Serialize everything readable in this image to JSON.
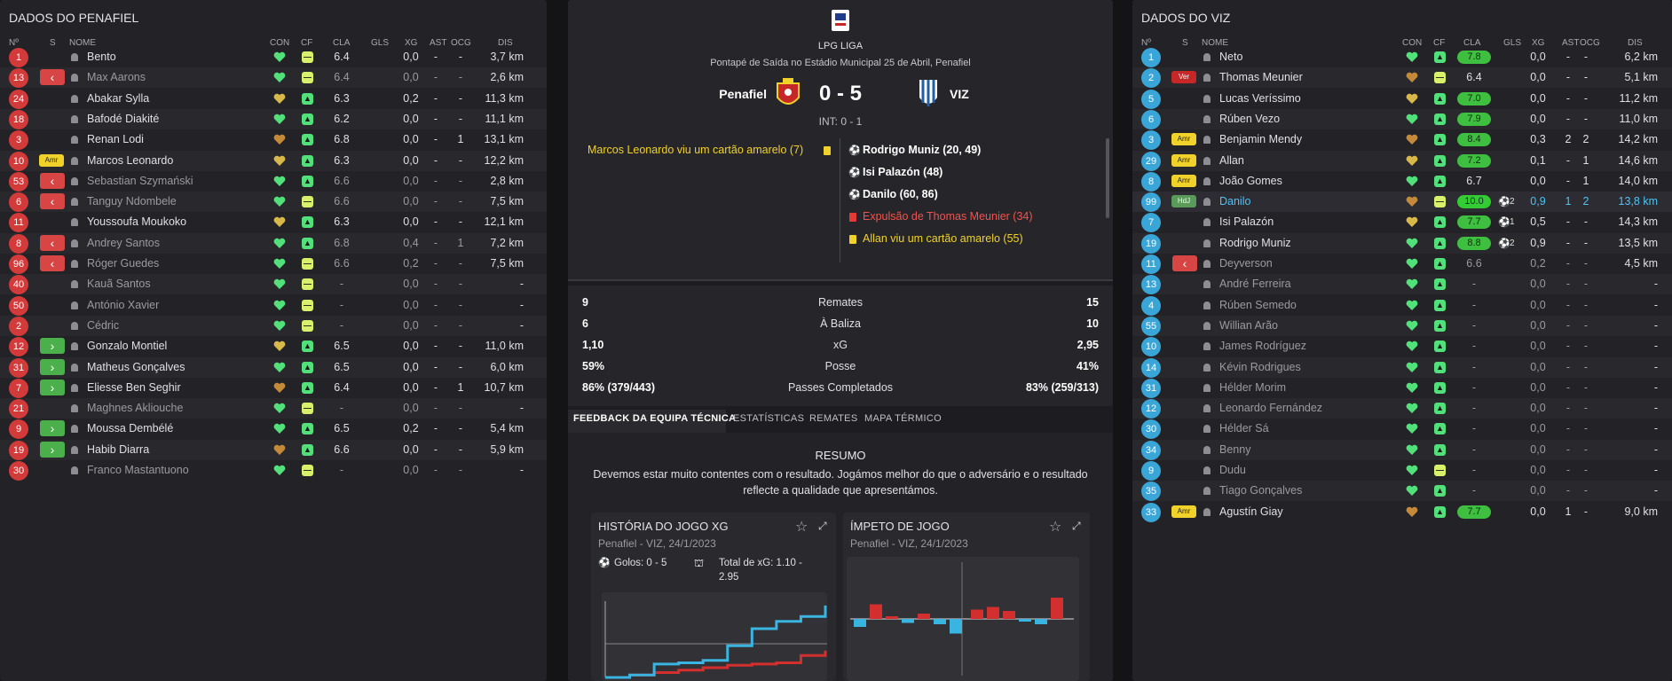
{
  "left": {
    "title": "DADOS DO PENAFIEL",
    "headers": {
      "no": "Nº",
      "s": "S",
      "nome": "NOME",
      "con": "CON",
      "cf": "CF",
      "cla": "CLA",
      "gls": "GLS",
      "xg": "XG",
      "ast": "AST",
      "ocg": "OCG",
      "dis": "DIS"
    },
    "players": [
      {
        "no": "1",
        "s": "",
        "name": "Bento",
        "cf": "y",
        "cla": "6.4",
        "xg": "0,0",
        "ast": "-",
        "ocg": "-",
        "dis": "3,7 km",
        "sub": false
      },
      {
        "no": "13",
        "s": "out",
        "name": "Max Aarons",
        "cf": "y",
        "cla": "6.4",
        "xg": "0,0",
        "ast": "-",
        "ocg": "-",
        "dis": "2,6 km",
        "sub": true
      },
      {
        "no": "24",
        "s": "",
        "name": "Abakar Sylla",
        "cf": "g",
        "cla": "6.3",
        "xg": "0,2",
        "ast": "-",
        "ocg": "-",
        "dis": "11,3 km",
        "sub": false
      },
      {
        "no": "18",
        "s": "",
        "name": "Bafodé Diakité",
        "cf": "g",
        "cla": "6.2",
        "xg": "0,0",
        "ast": "-",
        "ocg": "-",
        "dis": "11,1 km",
        "sub": false
      },
      {
        "no": "3",
        "s": "",
        "name": "Renan Lodi",
        "cf": "g",
        "cla": "6.8",
        "xg": "0,0",
        "ast": "-",
        "ocg": "1",
        "dis": "13,1 km",
        "sub": false
      },
      {
        "no": "10",
        "s": "amr",
        "name": "Marcos Leonardo",
        "cf": "g",
        "cla": "6.3",
        "xg": "0,0",
        "ast": "-",
        "ocg": "-",
        "dis": "12,2 km",
        "sub": false
      },
      {
        "no": "53",
        "s": "out",
        "name": "Sebastian Szymański",
        "cf": "g",
        "cla": "6.6",
        "xg": "0,0",
        "ast": "-",
        "ocg": "-",
        "dis": "2,8 km",
        "sub": true
      },
      {
        "no": "6",
        "s": "out",
        "name": "Tanguy Ndombele",
        "cf": "y",
        "cla": "6.6",
        "xg": "0,0",
        "ast": "-",
        "ocg": "-",
        "dis": "7,5 km",
        "sub": true
      },
      {
        "no": "11",
        "s": "",
        "name": "Youssoufa Moukoko",
        "cf": "g",
        "cla": "6.3",
        "xg": "0,0",
        "ast": "-",
        "ocg": "-",
        "dis": "12,1 km",
        "sub": false
      },
      {
        "no": "8",
        "s": "out",
        "name": "Andrey Santos",
        "cf": "g",
        "cla": "6.8",
        "xg": "0,4",
        "ast": "-",
        "ocg": "1",
        "dis": "7,2 km",
        "sub": true
      },
      {
        "no": "96",
        "s": "out",
        "name": "Róger Guedes",
        "cf": "y",
        "cla": "6.6",
        "xg": "0,2",
        "ast": "-",
        "ocg": "-",
        "dis": "7,5 km",
        "sub": true
      },
      {
        "no": "40",
        "s": "",
        "name": "Kauã Santos",
        "cf": "y",
        "cla": "-",
        "xg": "0,0",
        "ast": "-",
        "ocg": "-",
        "dis": "-",
        "sub": true
      },
      {
        "no": "50",
        "s": "",
        "name": "António Xavier",
        "cf": "y",
        "cla": "-",
        "xg": "0,0",
        "ast": "-",
        "ocg": "-",
        "dis": "-",
        "sub": true
      },
      {
        "no": "2",
        "s": "",
        "name": "Cédric",
        "cf": "y",
        "cla": "-",
        "xg": "0,0",
        "ast": "-",
        "ocg": "-",
        "dis": "-",
        "sub": true
      },
      {
        "no": "12",
        "s": "in",
        "name": "Gonzalo Montiel",
        "cf": "g",
        "cla": "6.5",
        "xg": "0,0",
        "ast": "-",
        "ocg": "-",
        "dis": "11,0 km",
        "sub": false
      },
      {
        "no": "31",
        "s": "in",
        "name": "Matheus Gonçalves",
        "cf": "g",
        "cla": "6.5",
        "xg": "0,0",
        "ast": "-",
        "ocg": "-",
        "dis": "6,0 km",
        "sub": false
      },
      {
        "no": "7",
        "s": "in",
        "name": "Eliesse Ben Seghir",
        "cf": "g",
        "cla": "6.4",
        "xg": "0,0",
        "ast": "-",
        "ocg": "1",
        "dis": "10,7 km",
        "sub": false
      },
      {
        "no": "21",
        "s": "",
        "name": "Maghnes Akliouche",
        "cf": "y",
        "cla": "-",
        "xg": "0,0",
        "ast": "-",
        "ocg": "-",
        "dis": "-",
        "sub": true
      },
      {
        "no": "9",
        "s": "in",
        "name": "Moussa Dembélé",
        "cf": "g",
        "cla": "6.5",
        "xg": "0,2",
        "ast": "-",
        "ocg": "-",
        "dis": "5,4 km",
        "sub": false
      },
      {
        "no": "19",
        "s": "in",
        "name": "Habib Diarra",
        "cf": "g",
        "cla": "6.6",
        "xg": "0,0",
        "ast": "-",
        "ocg": "-",
        "dis": "5,9 km",
        "sub": false
      },
      {
        "no": "30",
        "s": "",
        "name": "Franco Mastantuono",
        "cf": "y",
        "cla": "-",
        "xg": "0,0",
        "ast": "-",
        "ocg": "-",
        "dis": "-",
        "sub": true
      }
    ]
  },
  "right": {
    "title": "DADOS DO VIZ",
    "headers": {
      "no": "Nº",
      "s": "S",
      "nome": "NOME",
      "con": "CON",
      "cf": "CF",
      "cla": "CLA",
      "gls": "GLS",
      "xg": "XG",
      "ast": "AST",
      "ocg": "OCG",
      "dis": "DIS"
    },
    "players": [
      {
        "no": "1",
        "s": "",
        "name": "Neto",
        "cf": "g",
        "cla": "7.8",
        "rt": "good",
        "gls": "",
        "xg": "0,0",
        "ast": "-",
        "ocg": "-",
        "dis": "6,2 km",
        "sub": false,
        "hl": false
      },
      {
        "no": "2",
        "s": "ver",
        "name": "Thomas Meunier",
        "cf": "y",
        "cla": "6.4",
        "rt": "",
        "gls": "",
        "xg": "0,0",
        "ast": "-",
        "ocg": "-",
        "dis": "5,1 km",
        "sub": false,
        "hl": false
      },
      {
        "no": "5",
        "s": "",
        "name": "Lucas Veríssimo",
        "cf": "g",
        "cla": "7.0",
        "rt": "good",
        "gls": "",
        "xg": "0,0",
        "ast": "-",
        "ocg": "-",
        "dis": "11,2 km",
        "sub": false,
        "hl": false
      },
      {
        "no": "6",
        "s": "",
        "name": "Rúben Vezo",
        "cf": "g",
        "cla": "7.9",
        "rt": "good",
        "gls": "",
        "xg": "0,0",
        "ast": "-",
        "ocg": "-",
        "dis": "11,0 km",
        "sub": false,
        "hl": false
      },
      {
        "no": "3",
        "s": "amr",
        "name": "Benjamin Mendy",
        "cf": "g",
        "cla": "8.4",
        "rt": "good",
        "gls": "",
        "xg": "0,3",
        "ast": "2",
        "ocg": "2",
        "dis": "14,2 km",
        "sub": false,
        "hl": false
      },
      {
        "no": "29",
        "s": "amr",
        "name": "Allan",
        "cf": "g",
        "cla": "7.2",
        "rt": "good",
        "gls": "",
        "xg": "0,1",
        "ast": "-",
        "ocg": "1",
        "dis": "14,6 km",
        "sub": false,
        "hl": false
      },
      {
        "no": "8",
        "s": "amr",
        "name": "João Gomes",
        "cf": "g",
        "cla": "6.7",
        "rt": "",
        "gls": "",
        "xg": "0,0",
        "ast": "-",
        "ocg": "1",
        "dis": "14,0 km",
        "sub": false,
        "hl": false
      },
      {
        "no": "99",
        "s": "hdj",
        "name": "Danilo",
        "cf": "y",
        "cla": "10.0",
        "rt": "great",
        "gls": "2",
        "xg": "0,9",
        "ast": "1",
        "ocg": "2",
        "dis": "13,8 km",
        "sub": false,
        "hl": true
      },
      {
        "no": "7",
        "s": "",
        "name": "Isi Palazón",
        "cf": "g",
        "cla": "7.7",
        "rt": "good",
        "gls": "1",
        "xg": "0,5",
        "ast": "-",
        "ocg": "-",
        "dis": "14,3 km",
        "sub": false,
        "hl": false
      },
      {
        "no": "19",
        "s": "",
        "name": "Rodrigo Muniz",
        "cf": "g",
        "cla": "8.8",
        "rt": "good",
        "gls": "2",
        "xg": "0,9",
        "ast": "-",
        "ocg": "-",
        "dis": "13,5 km",
        "sub": false,
        "hl": false
      },
      {
        "no": "11",
        "s": "out",
        "name": "Deyverson",
        "cf": "g",
        "cla": "6.6",
        "rt": "",
        "gls": "",
        "xg": "0,2",
        "ast": "-",
        "ocg": "-",
        "dis": "4,5 km",
        "sub": true,
        "hl": false
      },
      {
        "no": "13",
        "s": "",
        "name": "André Ferreira",
        "cf": "g",
        "cla": "-",
        "rt": "",
        "gls": "",
        "xg": "0,0",
        "ast": "-",
        "ocg": "-",
        "dis": "-",
        "sub": true,
        "hl": false
      },
      {
        "no": "4",
        "s": "",
        "name": "Rúben Semedo",
        "cf": "g",
        "cla": "-",
        "rt": "",
        "gls": "",
        "xg": "0,0",
        "ast": "-",
        "ocg": "-",
        "dis": "-",
        "sub": true,
        "hl": false
      },
      {
        "no": "55",
        "s": "",
        "name": "Willian Arão",
        "cf": "g",
        "cla": "-",
        "rt": "",
        "gls": "",
        "xg": "0,0",
        "ast": "-",
        "ocg": "-",
        "dis": "-",
        "sub": true,
        "hl": false
      },
      {
        "no": "10",
        "s": "",
        "name": "James Rodríguez",
        "cf": "g",
        "cla": "-",
        "rt": "",
        "gls": "",
        "xg": "0,0",
        "ast": "-",
        "ocg": "-",
        "dis": "-",
        "sub": true,
        "hl": false
      },
      {
        "no": "14",
        "s": "",
        "name": "Kévin Rodrigues",
        "cf": "g",
        "cla": "-",
        "rt": "",
        "gls": "",
        "xg": "0,0",
        "ast": "-",
        "ocg": "-",
        "dis": "-",
        "sub": true,
        "hl": false
      },
      {
        "no": "31",
        "s": "",
        "name": "Hélder Morim",
        "cf": "g",
        "cla": "-",
        "rt": "",
        "gls": "",
        "xg": "0,0",
        "ast": "-",
        "ocg": "-",
        "dis": "-",
        "sub": true,
        "hl": false
      },
      {
        "no": "12",
        "s": "",
        "name": "Leonardo Fernández",
        "cf": "g",
        "cla": "-",
        "rt": "",
        "gls": "",
        "xg": "0,0",
        "ast": "-",
        "ocg": "-",
        "dis": "-",
        "sub": true,
        "hl": false
      },
      {
        "no": "30",
        "s": "",
        "name": "Hélder Sá",
        "cf": "g",
        "cla": "-",
        "rt": "",
        "gls": "",
        "xg": "0,0",
        "ast": "-",
        "ocg": "-",
        "dis": "-",
        "sub": true,
        "hl": false
      },
      {
        "no": "34",
        "s": "",
        "name": "Benny",
        "cf": "g",
        "cla": "-",
        "rt": "",
        "gls": "",
        "xg": "0,0",
        "ast": "-",
        "ocg": "-",
        "dis": "-",
        "sub": true,
        "hl": false
      },
      {
        "no": "9",
        "s": "",
        "name": "Dudu",
        "cf": "y",
        "cla": "-",
        "rt": "",
        "gls": "",
        "xg": "0,0",
        "ast": "-",
        "ocg": "-",
        "dis": "-",
        "sub": true,
        "hl": false
      },
      {
        "no": "35",
        "s": "",
        "name": "Tiago Gonçalves",
        "cf": "g",
        "cla": "-",
        "rt": "",
        "gls": "",
        "xg": "0,0",
        "ast": "-",
        "ocg": "-",
        "dis": "-",
        "sub": true,
        "hl": false
      },
      {
        "no": "33",
        "s": "amr",
        "name": "Agustín Giay",
        "cf": "g",
        "cla": "7.7",
        "rt": "good",
        "gls": "",
        "xg": "0,0",
        "ast": "1",
        "ocg": "-",
        "dis": "9,0 km",
        "sub": false,
        "hl": false
      }
    ]
  },
  "badges": {
    "amr": "Amr",
    "ver": "Ver",
    "hdj": "HdJ"
  },
  "match": {
    "league": "LPG LIGA",
    "kickoff": "Pontapé de Saída no Estádio Municipal 25 de Abril, Penafiel",
    "home": "Penafiel",
    "away": "VIZ",
    "score": "0 - 5",
    "halftime": "INT: 0 - 1",
    "events_home": [
      "Marcos Leonardo viu um cartão amarelo (7)"
    ],
    "events_away": [
      {
        "type": "goal",
        "text": "Rodrigo Muniz (20, 49)"
      },
      {
        "type": "goal",
        "text": "Isi Palazón (48)"
      },
      {
        "type": "goal",
        "text": "Danilo (60, 86)"
      },
      {
        "type": "red",
        "text": "Expulsão de Thomas Meunier (34)"
      },
      {
        "type": "yellow",
        "text": "Allan viu um cartão amarelo (55)"
      }
    ]
  },
  "stats": [
    {
      "home": "9",
      "label": "Remates",
      "away": "15"
    },
    {
      "home": "6",
      "label": "À Baliza",
      "away": "10"
    },
    {
      "home": "1,10",
      "label": "xG",
      "away": "2,95"
    },
    {
      "home": "59%",
      "label": "Posse",
      "away": "41%"
    },
    {
      "home": "86% (379/443)",
      "label": "Passes Completados",
      "away": "83% (259/313)"
    }
  ],
  "tabs": [
    "FEEDBACK DA EQUIPA TÉCNICA",
    "ESTATÍSTICAS",
    "REMATES",
    "MAPA TÉRMICO"
  ],
  "feedback": {
    "title": "RESUMO",
    "line1": "Devemos estar muito contentes com o resultado. Jogámos melhor do que o adversário e o resultado",
    "line2": "reflecte a qualidade que apresentámos."
  },
  "cards": {
    "xg": {
      "title": "HISTÓRIA DO JOGO XG",
      "sub": "Penafiel - VIZ, 24/1/2023",
      "goals": "Golos: 0 - 5",
      "xg1": "Total de xG: 1.10 -",
      "xg2": "2.95"
    },
    "momentum": {
      "title": "ÍMPETO DE JOGO",
      "sub": "Penafiel - VIZ, 24/1/2023"
    }
  },
  "colors": {
    "home_red": "#d32f2f",
    "away_blue": "#3ab4e0",
    "yellow_card": "#f0d22a",
    "red_card": "#e53935"
  },
  "chart_data": [
    {
      "type": "line",
      "title": "HISTÓRIA DO JOGO XG",
      "series": [
        {
          "x": [
            0,
            10,
            20,
            30,
            40,
            50,
            60,
            70,
            80,
            90
          ],
          "values": [
            0,
            0.1,
            0.2,
            0.3,
            0.4,
            0.5,
            0.55,
            0.6,
            0.9,
            1.1
          ]
        },
        {
          "x": [
            0,
            10,
            20,
            30,
            40,
            50,
            60,
            70,
            80,
            90
          ],
          "values": [
            0,
            0.1,
            0.55,
            0.6,
            0.7,
            1.3,
            2.0,
            2.3,
            2.5,
            2.95
          ]
        }
      ]
    },
    {
      "type": "bar",
      "title": "ÍMPETO DE JOGO",
      "categories": [
        "1",
        "2",
        "3",
        "4",
        "5",
        "6",
        "7",
        "8",
        "9",
        "10",
        "11",
        "12",
        "13"
      ],
      "series": [
        {
          "values": [
            -0.3,
            0.55,
            0.1,
            -0.15,
            0.2,
            -0.2,
            -0.55,
            0.35,
            0.45,
            0.3,
            -0.1,
            -0.2,
            0.8
          ]
        }
      ]
    }
  ]
}
